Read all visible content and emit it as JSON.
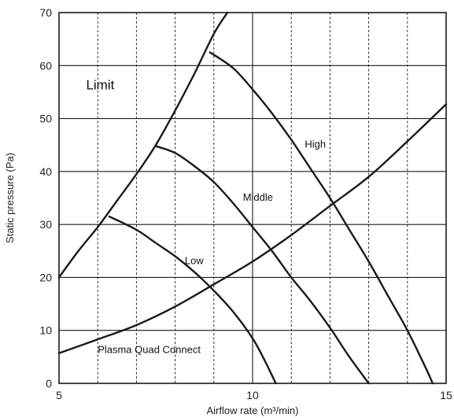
{
  "chart_data": {
    "type": "line",
    "xlabel": "Airflow rate (m³/min)",
    "ylabel": "Static pressure (Pa)",
    "xlim": [
      5,
      15
    ],
    "ylim": [
      0,
      70
    ],
    "x_ticks": [
      "5",
      "10",
      "15"
    ],
    "y_ticks": [
      "0",
      "10",
      "20",
      "30",
      "40",
      "50",
      "60",
      "70"
    ],
    "grid": {
      "major": "solid",
      "minor_x": "dashed",
      "minor_x_step": 1,
      "major_x_step": 5,
      "major_y_step": 10
    },
    "colors": {
      "line": "#1a1a1a",
      "grid": "#1a1a1a",
      "background": "#ffffff"
    },
    "annotations": [
      {
        "text": "Limit",
        "x": 5.7,
        "y": 55.5,
        "size": "large"
      },
      {
        "text": "High",
        "x": 11.35,
        "y": 44.5,
        "size": "normal"
      },
      {
        "text": "Middle",
        "x": 9.75,
        "y": 34.5,
        "size": "normal"
      },
      {
        "text": "Low",
        "x": 8.25,
        "y": 22.5,
        "size": "normal"
      },
      {
        "text": "Plasma Quad Connect",
        "x": 6.0,
        "y": 5.7,
        "size": "normal"
      }
    ],
    "series": [
      {
        "id": "limit",
        "x": [
          5.0,
          5.5,
          6.0,
          6.5,
          7.0,
          7.5,
          8.0,
          8.5,
          9.0,
          9.35
        ],
        "y": [
          20.0,
          25.0,
          29.5,
          34.5,
          39.5,
          45.0,
          51.5,
          58.5,
          66.0,
          70.0
        ]
      },
      {
        "id": "high",
        "x": [
          8.9,
          9.5,
          10.0,
          10.5,
          11.0,
          11.5,
          12.0,
          12.5,
          13.0,
          13.5,
          14.0,
          14.5,
          14.65
        ],
        "y": [
          62.5,
          59.5,
          55.5,
          51.0,
          46.0,
          40.5,
          35.0,
          29.0,
          23.0,
          16.5,
          10.0,
          2.5,
          0.0
        ]
      },
      {
        "id": "middle",
        "x": [
          7.5,
          8.0,
          8.5,
          9.0,
          9.5,
          10.0,
          10.5,
          11.0,
          11.5,
          12.0,
          12.5,
          13.0
        ],
        "y": [
          44.8,
          43.5,
          41.0,
          38.0,
          34.0,
          29.5,
          25.0,
          20.0,
          15.5,
          10.5,
          5.0,
          0.0
        ]
      },
      {
        "id": "low",
        "x": [
          6.3,
          7.0,
          7.5,
          8.0,
          8.5,
          9.0,
          9.5,
          10.0,
          10.3,
          10.6
        ],
        "y": [
          31.5,
          29.0,
          26.5,
          24.0,
          21.0,
          17.5,
          13.5,
          8.5,
          4.5,
          0.0
        ]
      },
      {
        "id": "plasma-quad-connect",
        "x": [
          5.0,
          6.0,
          7.0,
          8.0,
          9.0,
          10.0,
          11.0,
          12.0,
          13.0,
          14.0,
          15.0
        ],
        "y": [
          5.7,
          8.3,
          11.0,
          14.5,
          18.7,
          23.0,
          28.0,
          33.5,
          39.0,
          45.7,
          52.7
        ]
      }
    ]
  }
}
